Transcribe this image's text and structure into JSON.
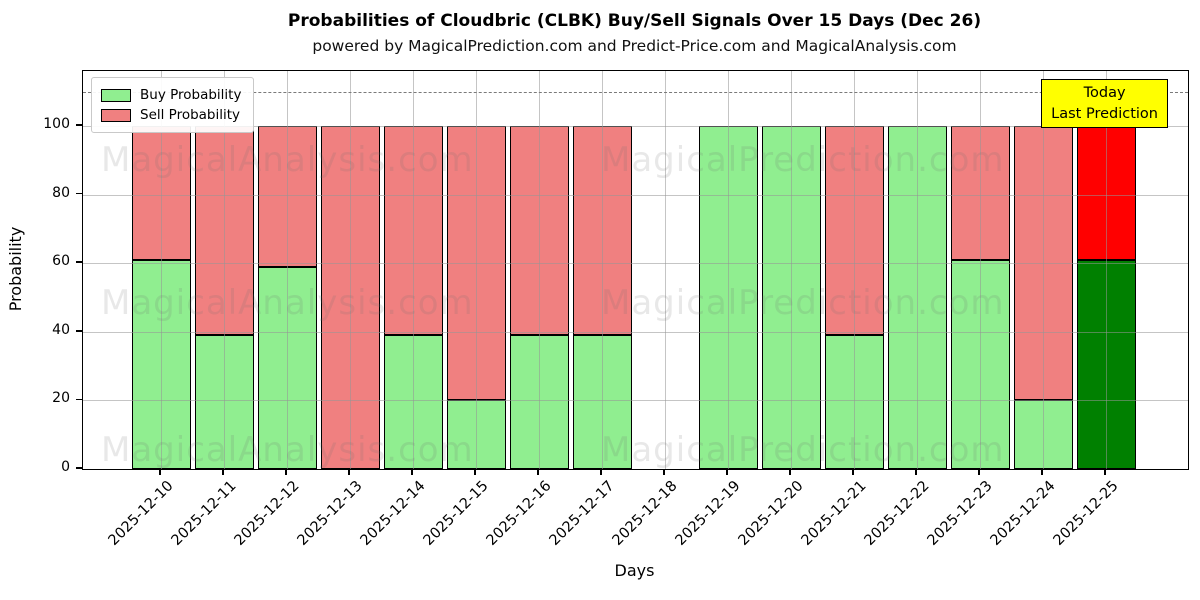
{
  "header": {
    "title": "Probabilities of Cloudbric (CLBK) Buy/Sell Signals Over 15 Days (Dec 26)",
    "subtitle": "powered by MagicalPrediction.com and Predict-Price.com and MagicalAnalysis.com"
  },
  "chart_data": {
    "type": "bar",
    "stacked": true,
    "title": "Probabilities of Cloudbric (CLBK) Buy/Sell Signals Over 15 Days (Dec 26)",
    "xlabel": "Days",
    "ylabel": "Probability",
    "ylim": [
      0,
      116
    ],
    "yticks": [
      0,
      20,
      40,
      60,
      80,
      100
    ],
    "grid": true,
    "legend_position": "upper left",
    "dashed_line_y": 110,
    "categories": [
      "2025-12-10",
      "2025-12-11",
      "2025-12-12",
      "2025-12-13",
      "2025-12-14",
      "2025-12-15",
      "2025-12-16",
      "2025-12-17",
      "2025-12-18",
      "2025-12-19",
      "2025-12-20",
      "2025-12-21",
      "2025-12-22",
      "2025-12-23",
      "2025-12-24",
      "2025-12-25"
    ],
    "series": [
      {
        "name": "Buy Probability",
        "color": "#90EE90",
        "values": [
          61,
          39,
          59,
          0,
          39,
          20,
          39,
          39,
          null,
          100,
          100,
          39,
          100,
          61,
          20,
          61
        ]
      },
      {
        "name": "Sell Probability",
        "color": "#F08080",
        "values": [
          39,
          61,
          41,
          100,
          61,
          80,
          61,
          61,
          null,
          0,
          0,
          61,
          0,
          39,
          80,
          39
        ]
      }
    ],
    "today_bar": {
      "index": 15,
      "buy_color": "#008000",
      "sell_color": "#FF0000"
    }
  },
  "annotation_box": {
    "line1": "Today",
    "line2": "Last Prediction",
    "bg_color": "#FFFF00"
  },
  "watermarks": {
    "left": "MagicalAnalysis.com",
    "right": "MagicalPrediction.com"
  }
}
